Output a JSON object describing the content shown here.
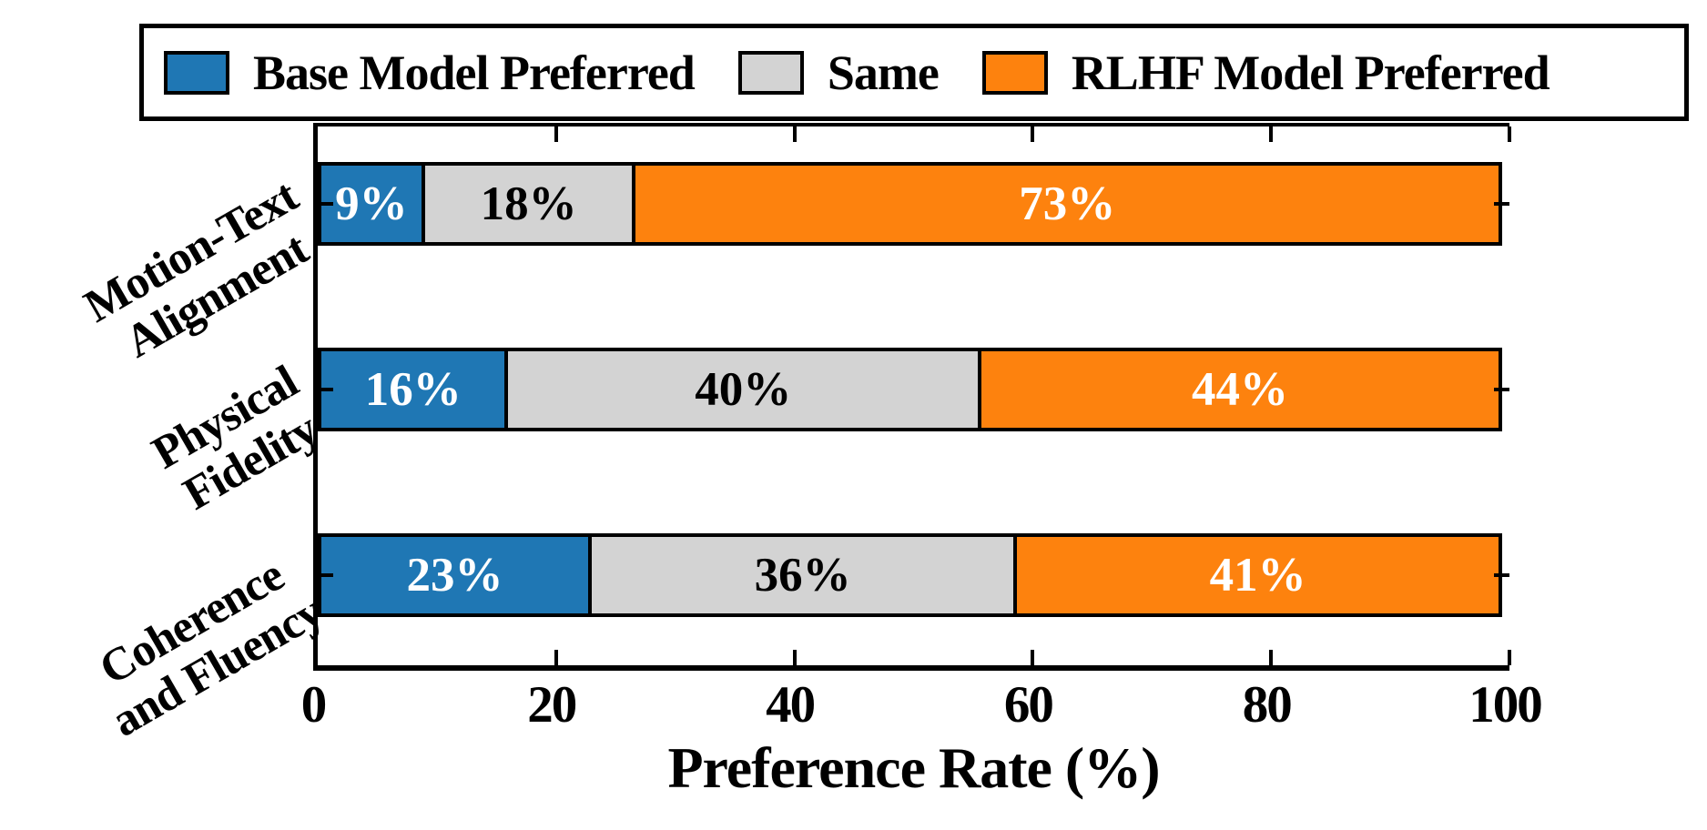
{
  "colors": {
    "base_blue": "#1f77b4",
    "same_gray": "#d3d3d3",
    "rlhf_orange": "#fd820e",
    "edge": "#000000",
    "background": "#ffffff"
  },
  "legend": {
    "items": [
      {
        "label": "Base Model Preferred",
        "color": "#1f77b4"
      },
      {
        "label": "Same",
        "color": "#d3d3d3"
      },
      {
        "label": "RLHF Model Preferred",
        "color": "#fd820e"
      }
    ]
  },
  "chart_data": {
    "type": "bar",
    "orientation": "horizontal",
    "stacked": true,
    "title": "",
    "xlabel": "Preference Rate (%)",
    "ylabel": "",
    "xlim": [
      0,
      100
    ],
    "x_ticks": [
      0,
      20,
      40,
      60,
      80,
      100
    ],
    "grid": false,
    "legend_position": "top",
    "categories": [
      "Motion-Text\nAlignment",
      "Physical\nFidelity",
      "Coherence\nand Fluency"
    ],
    "series": [
      {
        "name": "Base Model Preferred",
        "color": "#1f77b4",
        "label_color": "#ffffff",
        "values": [
          9,
          16,
          23
        ]
      },
      {
        "name": "Same",
        "color": "#d3d3d3",
        "label_color": "#000000",
        "values": [
          18,
          40,
          36
        ]
      },
      {
        "name": "RLHF Model Preferred",
        "color": "#fd820e",
        "label_color": "#ffffff",
        "values": [
          73,
          44,
          41
        ]
      }
    ],
    "bar_labels": [
      [
        "9%",
        "18%",
        "73%"
      ],
      [
        "16%",
        "40%",
        "44%"
      ],
      [
        "23%",
        "36%",
        "41%"
      ]
    ]
  }
}
